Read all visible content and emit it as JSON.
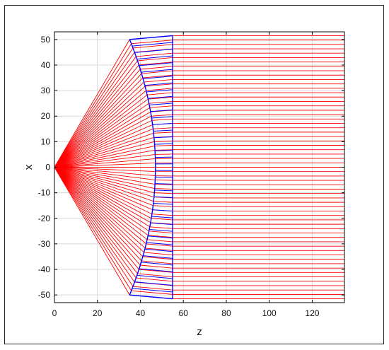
{
  "chart_data": {
    "type": "line",
    "title": "",
    "xlabel": "z",
    "ylabel": "x",
    "xlim": [
      0,
      135
    ],
    "ylim": [
      -53,
      53
    ],
    "grid": true,
    "x_ticks": [
      0,
      20,
      40,
      60,
      80,
      100,
      120
    ],
    "y_ticks": [
      -50,
      -40,
      -30,
      -20,
      -10,
      0,
      10,
      20,
      30,
      40,
      50
    ],
    "source_point": {
      "z": 0,
      "x": 0
    },
    "lens": {
      "front_surface": {
        "apex_z": 47,
        "edge_z": 35,
        "edge_x": 50
      },
      "back_surface": {
        "z": 55,
        "edge_x": 51.5
      },
      "ray_count_inside": 40
    },
    "ray_count": 61,
    "exit_z": 135,
    "colors": {
      "rays": "#ff0000",
      "lens": "#0000ff",
      "grid": "#d9d9d9",
      "axes": "#000000"
    }
  }
}
